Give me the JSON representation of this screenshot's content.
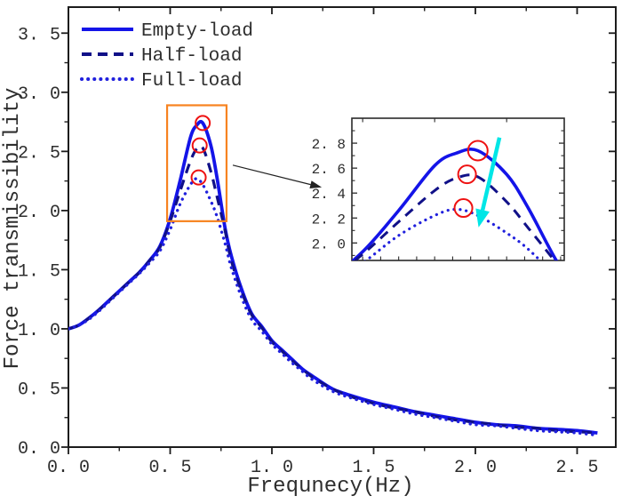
{
  "figure": {
    "background": "#ffffff"
  },
  "chart_data": {
    "type": "line",
    "title": "",
    "xlabel": "Frequnecy(Hz)",
    "ylabel": "Force transmissibility",
    "xlim": [
      0,
      2.69
    ],
    "ylim": [
      0,
      3.72
    ],
    "grid": false,
    "legend_position": "top-left",
    "x_major_ticks": [
      0,
      0.5,
      1.0,
      1.5,
      2.0,
      2.5
    ],
    "x_tick_labels": [
      "0. 0",
      "0. 5",
      "1. 0",
      "1. 5",
      "2. 0",
      "2. 5"
    ],
    "x_minor_step": 0.25,
    "y_major_ticks": [
      0,
      0.5,
      1.0,
      1.5,
      2.0,
      2.5,
      3.0,
      3.5
    ],
    "y_tick_labels": [
      "0. 0",
      "0. 5",
      "1. 0",
      "1. 5",
      "2. 0",
      "2. 5",
      "3. 0",
      "3. 5"
    ],
    "y_minor_step": 0.25,
    "x": [
      0.0,
      0.05,
      0.1,
      0.15,
      0.2,
      0.25,
      0.3,
      0.35,
      0.4,
      0.45,
      0.5,
      0.55,
      0.6,
      0.63,
      0.66,
      0.7,
      0.73,
      0.77,
      0.8,
      0.85,
      0.9,
      0.95,
      1.0,
      1.05,
      1.1,
      1.15,
      1.2,
      1.3,
      1.4,
      1.5,
      1.6,
      1.7,
      1.8,
      1.9,
      2.0,
      2.1,
      2.2,
      2.3,
      2.4,
      2.5,
      2.6
    ],
    "series": [
      {
        "name": "Empty-load",
        "line_style": "solid",
        "color": "#1414e8",
        "peak": [
          0.66,
          2.74
        ],
        "values": [
          1.0,
          1.03,
          1.09,
          1.16,
          1.24,
          1.32,
          1.4,
          1.48,
          1.58,
          1.7,
          1.93,
          2.26,
          2.62,
          2.72,
          2.74,
          2.55,
          2.28,
          1.85,
          1.62,
          1.34,
          1.13,
          1.02,
          0.9,
          0.82,
          0.74,
          0.66,
          0.6,
          0.49,
          0.43,
          0.38,
          0.34,
          0.3,
          0.27,
          0.24,
          0.21,
          0.19,
          0.18,
          0.16,
          0.15,
          0.14,
          0.12
        ]
      },
      {
        "name": "Half-load",
        "line_style": "dashed",
        "color": "#101088",
        "peak": [
          0.645,
          2.55
        ],
        "values": [
          1.0,
          1.03,
          1.09,
          1.16,
          1.24,
          1.32,
          1.4,
          1.48,
          1.58,
          1.69,
          1.91,
          2.17,
          2.42,
          2.52,
          2.53,
          2.33,
          2.12,
          1.83,
          1.58,
          1.32,
          1.12,
          1.01,
          0.89,
          0.81,
          0.73,
          0.66,
          0.59,
          0.49,
          0.42,
          0.37,
          0.33,
          0.3,
          0.26,
          0.23,
          0.21,
          0.19,
          0.17,
          0.16,
          0.14,
          0.13,
          0.12
        ]
      },
      {
        "name": "Full-load",
        "line_style": "dotted",
        "color": "#2020dd",
        "peak": [
          0.64,
          2.28
        ],
        "values": [
          1.0,
          1.03,
          1.08,
          1.15,
          1.23,
          1.31,
          1.39,
          1.47,
          1.56,
          1.66,
          1.84,
          2.06,
          2.22,
          2.27,
          2.22,
          2.08,
          1.95,
          1.72,
          1.52,
          1.27,
          1.08,
          0.98,
          0.87,
          0.79,
          0.71,
          0.64,
          0.57,
          0.47,
          0.41,
          0.36,
          0.32,
          0.28,
          0.25,
          0.22,
          0.19,
          0.18,
          0.16,
          0.14,
          0.13,
          0.12,
          0.1
        ]
      }
    ],
    "inset": {
      "xlim": [
        0.485,
        0.78
      ],
      "ylim": [
        1.86,
        3.0
      ],
      "y_major_ticks": [
        2.0,
        2.2,
        2.4,
        2.6,
        2.8
      ],
      "y_tick_labels": [
        "2. 0",
        "2. 2",
        "2. 4",
        "2. 6",
        "2. 8"
      ],
      "y_minor_step": 0.1,
      "x_bottom_tick_step": 0.025,
      "x_top_tick_step": 0.1
    },
    "zoom_box": {
      "x0": 0.485,
      "x1": 0.777,
      "y0": 1.91,
      "y1": 2.89,
      "color": "#f78320"
    },
    "annotations": {
      "peak_circle_color": "#ee1111",
      "connector_arrow": {
        "from": [
          0.808,
          2.384
        ],
        "to": [
          1.245,
          2.196
        ],
        "color": "#222222"
      },
      "trend_arrow": {
        "from": [
          0.69,
          2.845
        ],
        "to": [
          0.661,
          2.125
        ],
        "color": "#00e6e6"
      }
    }
  }
}
